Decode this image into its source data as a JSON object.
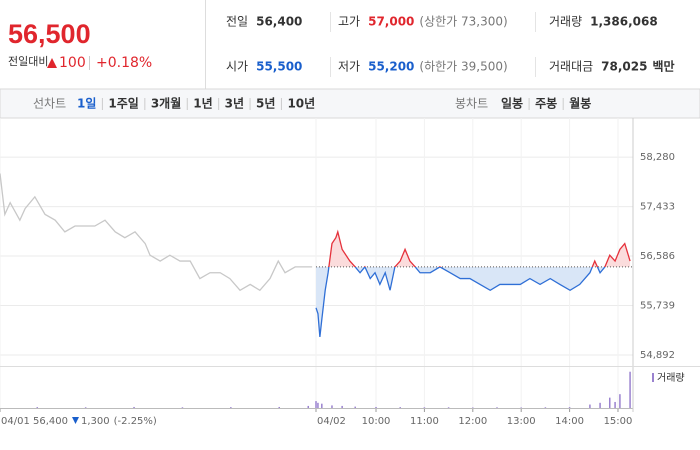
{
  "header": {
    "price": "56,500",
    "change_label": "전일대비",
    "change": "100",
    "change_rate": "+0.18%",
    "stats": [
      {
        "label": "전일",
        "value": "56,400"
      },
      {
        "label": "고가",
        "value": "57,000",
        "note": "(상한가 73,300)"
      },
      {
        "label": "거래량",
        "value": "1,386,068"
      },
      {
        "label": "시가",
        "value": "55,500"
      },
      {
        "label": "저가",
        "value": "55,200",
        "note": "(하한가 39,500)"
      },
      {
        "label": "거래대금",
        "value": "78,025",
        "note": "백만"
      }
    ]
  },
  "tabs": {
    "line_label": "선차트",
    "line": [
      "1일",
      "1주일",
      "3개월",
      "1년",
      "3년",
      "5년",
      "10년"
    ],
    "selected": 0,
    "candle_label": "봉차트",
    "candle": [
      "일봉",
      "주봉",
      "월봉"
    ]
  },
  "chart_data": {
    "type": "line",
    "xlim": [
      -0.27,
      12.8
    ],
    "ylim": [
      54720,
      58830
    ],
    "xticks": [
      {
        "value": -0.27,
        "label": "04/01"
      },
      {
        "value": 6.26,
        "label": "04/02"
      },
      {
        "value": 7.5,
        "label": "10:00"
      },
      {
        "value": 8.5,
        "label": "11:00"
      },
      {
        "value": 9.5,
        "label": "12:00"
      },
      {
        "value": 10.5,
        "label": "13:00"
      },
      {
        "value": 11.5,
        "label": "14:00"
      },
      {
        "value": 12.5,
        "label": "15:00"
      }
    ],
    "yticks": [
      {
        "value": 58280,
        "label": "58,280"
      },
      {
        "value": 57433,
        "label": "57,433"
      },
      {
        "value": 56586,
        "label": "56,586"
      },
      {
        "value": 55739,
        "label": "55,739"
      },
      {
        "value": 54892,
        "label": "54,892"
      }
    ],
    "reference_line": 56400,
    "series": [
      {
        "color": "#c8c8c8",
        "x": [
          -0.27,
          -0.17,
          -0.06,
          0.14,
          0.25,
          0.45,
          0.66,
          0.87,
          1.07,
          1.28,
          1.49,
          1.69,
          1.9,
          2.11,
          2.31,
          2.52,
          2.73,
          2.83,
          3.04,
          3.24,
          3.45,
          3.66,
          3.86,
          4.07,
          4.28,
          4.48,
          4.69,
          4.9,
          5.1,
          5.31,
          5.48,
          5.62,
          5.83,
          6.03,
          6.18
        ],
        "values": [
          58000,
          57300,
          57500,
          57200,
          57400,
          57600,
          57300,
          57200,
          57000,
          57100,
          57100,
          57100,
          57200,
          57000,
          56900,
          57000,
          56800,
          56600,
          56500,
          56600,
          56500,
          56500,
          56200,
          56300,
          56300,
          56200,
          56000,
          56100,
          56000,
          56200,
          56500,
          56300,
          56400,
          56400,
          56400
        ]
      },
      {
        "color_up": "#e5323c",
        "color_down": "#2f6fd6",
        "fill_up": "#fbdcdc",
        "fill_down": "#d9e6f7",
        "x": [
          6.26,
          6.3,
          6.34,
          6.38,
          6.45,
          6.51,
          6.59,
          6.67,
          6.71,
          6.8,
          6.88,
          6.96,
          7.07,
          7.17,
          7.27,
          7.38,
          7.48,
          7.58,
          7.69,
          7.79,
          7.89,
          8.0,
          8.1,
          8.2,
          8.31,
          8.41,
          8.62,
          8.82,
          9.03,
          9.24,
          9.44,
          9.65,
          9.86,
          10.06,
          10.27,
          10.48,
          10.68,
          10.89,
          11.1,
          11.3,
          11.51,
          11.71,
          11.92,
          12.02,
          12.13,
          12.23,
          12.33,
          12.44,
          12.54,
          12.64,
          12.75
        ],
        "values": [
          55700,
          55600,
          55200,
          55500,
          56000,
          56300,
          56800,
          56900,
          57000,
          56700,
          56600,
          56500,
          56400,
          56300,
          56400,
          56200,
          56300,
          56100,
          56300,
          56000,
          56400,
          56500,
          56700,
          56500,
          56400,
          56300,
          56300,
          56400,
          56300,
          56200,
          56200,
          56100,
          56000,
          56100,
          56100,
          56100,
          56200,
          56100,
          56200,
          56100,
          56000,
          56100,
          56300,
          56500,
          56300,
          56400,
          56600,
          56500,
          56700,
          56800,
          56500
        ]
      }
    ],
    "annotation": {
      "close": "56,400",
      "change": "1,300",
      "rate": "(-2.25%)"
    },
    "volume": {
      "name": "거래량",
      "color": "#9a82cf",
      "ylim": [
        0,
        220000
      ],
      "x": [
        0.5,
        1.5,
        2.5,
        3.5,
        4.5,
        5.5,
        6.1,
        6.26,
        6.3,
        6.38,
        6.59,
        6.8,
        7.07,
        7.5,
        8.0,
        8.5,
        9.0,
        9.5,
        10.0,
        10.5,
        11.0,
        11.5,
        11.92,
        12.13,
        12.33,
        12.44,
        12.54,
        12.75
      ],
      "values": [
        5000,
        4000,
        6000,
        4000,
        5000,
        6000,
        12000,
        40000,
        30000,
        25000,
        15000,
        12000,
        8000,
        6000,
        5000,
        4000,
        4000,
        3000,
        4000,
        3000,
        4000,
        5000,
        20000,
        30000,
        60000,
        35000,
        80000,
        210000
      ]
    }
  }
}
